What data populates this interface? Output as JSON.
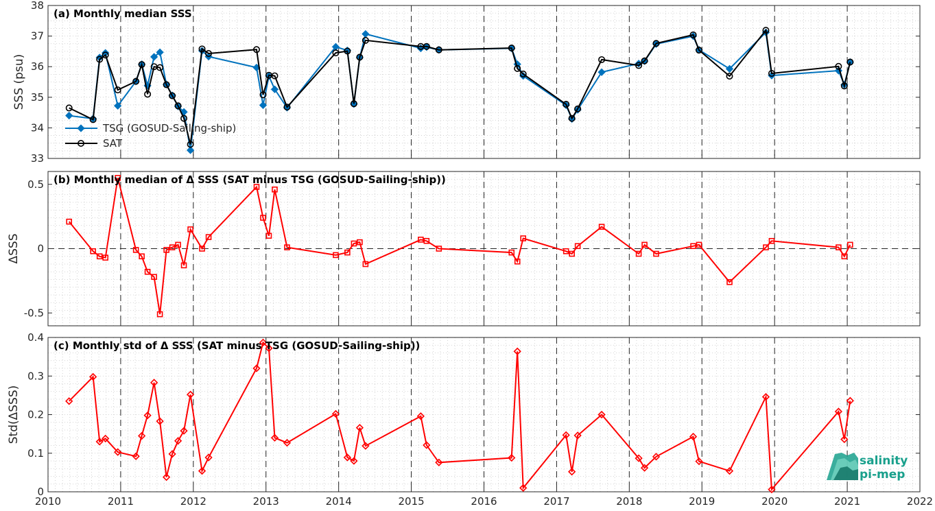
{
  "colors": {
    "tsg": "#0072BD",
    "sat": "#000000",
    "delta": "#FF0000",
    "grid": "#c8c8c8",
    "logo": "#19a08c"
  },
  "logo": {
    "line1": "salinity",
    "line2": "pi-mep"
  },
  "chart_data": [
    {
      "id": "a",
      "type": "line",
      "title": "(a) Monthly median SSS",
      "xlabel": "",
      "ylabel": "SSS (psu)",
      "xlim": [
        2010,
        2022
      ],
      "ylim": [
        33,
        38
      ],
      "xticks": [
        "2010",
        "2011",
        "2012",
        "2013",
        "2014",
        "2015",
        "2016",
        "2017",
        "2018",
        "2019",
        "2020",
        "2021",
        "2022"
      ],
      "yticks": [
        "33",
        "34",
        "35",
        "36",
        "37",
        "38"
      ],
      "legend_position": "bottom-left",
      "series": [
        {
          "name": "TSG (GOSUD-Sailing-ship)",
          "marker": "diamond",
          "x": [
            2010.29,
            2010.62,
            2010.71,
            2010.79,
            2010.96,
            2011.21,
            2011.29,
            2011.37,
            2011.46,
            2011.54,
            2011.63,
            2011.71,
            2011.79,
            2011.87,
            2011.96,
            2012.12,
            2012.21,
            2012.87,
            2012.96,
            2013.04,
            2013.12,
            2013.29,
            2013.96,
            2014.12,
            2014.21,
            2014.29,
            2014.37,
            2015.13,
            2015.21,
            2015.38,
            2016.38,
            2016.46,
            2016.54,
            2017.13,
            2017.21,
            2017.29,
            2017.62,
            2018.13,
            2018.21,
            2018.37,
            2018.88,
            2018.96,
            2019.38,
            2019.88,
            2019.96,
            2020.88,
            2020.96,
            2021.04
          ],
          "y": [
            34.4,
            34.3,
            36.3,
            36.45,
            34.72,
            35.52,
            36.08,
            35.38,
            36.32,
            36.47,
            35.42,
            35.06,
            34.7,
            34.52,
            33.27,
            36.52,
            36.33,
            35.97,
            34.74,
            35.69,
            35.26,
            34.66,
            36.65,
            36.53,
            34.78,
            36.3,
            37.07,
            36.6,
            36.64,
            36.55,
            36.6,
            36.08,
            35.7,
            34.74,
            34.29,
            34.59,
            35.82,
            36.1,
            36.18,
            36.74,
            37.0,
            36.55,
            35.93,
            37.12,
            35.71,
            35.87,
            35.41,
            36.15
          ]
        },
        {
          "name": "SAT",
          "marker": "circle",
          "x": [
            2010.29,
            2010.62,
            2010.71,
            2010.79,
            2010.96,
            2011.21,
            2011.29,
            2011.37,
            2011.46,
            2011.54,
            2011.63,
            2011.71,
            2011.79,
            2011.87,
            2011.96,
            2012.12,
            2012.21,
            2012.87,
            2012.96,
            2013.04,
            2013.12,
            2013.29,
            2013.96,
            2014.12,
            2014.21,
            2014.29,
            2014.37,
            2015.13,
            2015.21,
            2015.38,
            2016.38,
            2016.46,
            2016.54,
            2017.13,
            2017.21,
            2017.29,
            2017.62,
            2018.13,
            2018.21,
            2018.37,
            2018.88,
            2018.96,
            2019.38,
            2019.88,
            2019.96,
            2020.88,
            2020.96,
            2021.04
          ],
          "y": [
            34.65,
            34.27,
            36.24,
            36.38,
            35.24,
            35.52,
            36.07,
            35.1,
            36.0,
            35.97,
            35.41,
            35.05,
            34.72,
            34.31,
            33.46,
            36.58,
            36.43,
            36.56,
            35.08,
            35.72,
            35.7,
            34.68,
            36.45,
            36.51,
            34.79,
            36.31,
            36.86,
            36.66,
            36.66,
            36.55,
            36.61,
            35.94,
            35.76,
            34.77,
            34.31,
            34.62,
            36.23,
            36.04,
            36.19,
            36.76,
            37.04,
            36.54,
            35.69,
            37.19,
            35.78,
            36.01,
            35.37,
            36.15
          ]
        }
      ]
    },
    {
      "id": "b",
      "type": "line",
      "title": "(b) Monthly median of Δ SSS (SAT minus TSG (GOSUD-Sailing-ship))",
      "xlabel": "",
      "ylabel": "ΔSSS",
      "xlim": [
        2010,
        2022
      ],
      "ylim": [
        -0.6,
        0.6
      ],
      "xticks": [
        "2010",
        "2011",
        "2012",
        "2013",
        "2014",
        "2015",
        "2016",
        "2017",
        "2018",
        "2019",
        "2020",
        "2021",
        "2022"
      ],
      "yticks": [
        "-0.5",
        "0",
        "0.5"
      ],
      "series": [
        {
          "marker": "square",
          "x": [
            2010.29,
            2010.62,
            2010.71,
            2010.79,
            2010.96,
            2011.21,
            2011.29,
            2011.37,
            2011.46,
            2011.54,
            2011.63,
            2011.71,
            2011.79,
            2011.87,
            2011.96,
            2012.12,
            2012.21,
            2012.87,
            2012.96,
            2013.04,
            2013.12,
            2013.29,
            2013.96,
            2014.12,
            2014.21,
            2014.29,
            2014.37,
            2015.13,
            2015.21,
            2015.38,
            2016.38,
            2016.46,
            2016.54,
            2017.13,
            2017.21,
            2017.29,
            2017.62,
            2018.13,
            2018.21,
            2018.37,
            2018.88,
            2018.96,
            2019.38,
            2019.88,
            2019.96,
            2020.88,
            2020.96,
            2021.04
          ],
          "y": [
            0.21,
            -0.02,
            -0.06,
            -0.07,
            0.55,
            -0.01,
            -0.06,
            -0.18,
            -0.22,
            -0.51,
            -0.01,
            0.01,
            0.03,
            -0.13,
            0.15,
            -0.0,
            0.09,
            0.48,
            0.24,
            0.1,
            0.46,
            0.01,
            -0.05,
            -0.03,
            0.04,
            0.05,
            -0.12,
            0.07,
            0.06,
            0.0,
            -0.03,
            -0.1,
            0.08,
            -0.02,
            -0.04,
            0.02,
            0.17,
            -0.04,
            0.03,
            -0.04,
            0.02,
            0.03,
            -0.26,
            0.01,
            0.06,
            0.01,
            -0.06,
            0.03
          ]
        }
      ]
    },
    {
      "id": "c",
      "type": "line",
      "title": "(c) Monthly std of Δ SSS (SAT minus TSG (GOSUD-Sailing-ship))",
      "xlabel": "",
      "ylabel": "Std(ΔSSS)",
      "xlim": [
        2010,
        2022
      ],
      "ylim": [
        0,
        0.4
      ],
      "xticks": [
        "2010",
        "2011",
        "2012",
        "2013",
        "2014",
        "2015",
        "2016",
        "2017",
        "2018",
        "2019",
        "2020",
        "2021",
        "2022"
      ],
      "yticks": [
        "0",
        "0.1",
        "0.2",
        "0.3",
        "0.4"
      ],
      "series": [
        {
          "marker": "diamond",
          "x": [
            2010.29,
            2010.62,
            2010.71,
            2010.79,
            2010.96,
            2011.21,
            2011.29,
            2011.37,
            2011.46,
            2011.54,
            2011.63,
            2011.71,
            2011.79,
            2011.87,
            2011.96,
            2012.12,
            2012.21,
            2012.87,
            2012.96,
            2013.04,
            2013.12,
            2013.29,
            2013.96,
            2014.12,
            2014.21,
            2014.29,
            2014.37,
            2015.13,
            2015.21,
            2015.38,
            2016.38,
            2016.46,
            2016.54,
            2017.13,
            2017.21,
            2017.29,
            2017.62,
            2018.13,
            2018.21,
            2018.37,
            2018.88,
            2018.96,
            2019.38,
            2019.88,
            2019.96,
            2020.88,
            2020.96,
            2021.04
          ],
          "y": [
            0.235,
            0.298,
            0.13,
            0.138,
            0.103,
            0.092,
            0.145,
            0.198,
            0.283,
            0.183,
            0.038,
            0.098,
            0.132,
            0.158,
            0.252,
            0.054,
            0.089,
            0.32,
            0.387,
            0.372,
            0.14,
            0.127,
            0.202,
            0.089,
            0.08,
            0.166,
            0.119,
            0.196,
            0.121,
            0.076,
            0.088,
            0.364,
            0.01,
            0.147,
            0.052,
            0.146,
            0.2,
            0.087,
            0.062,
            0.091,
            0.143,
            0.079,
            0.054,
            0.246,
            0.006,
            0.208,
            0.136,
            0.236
          ]
        }
      ]
    }
  ]
}
